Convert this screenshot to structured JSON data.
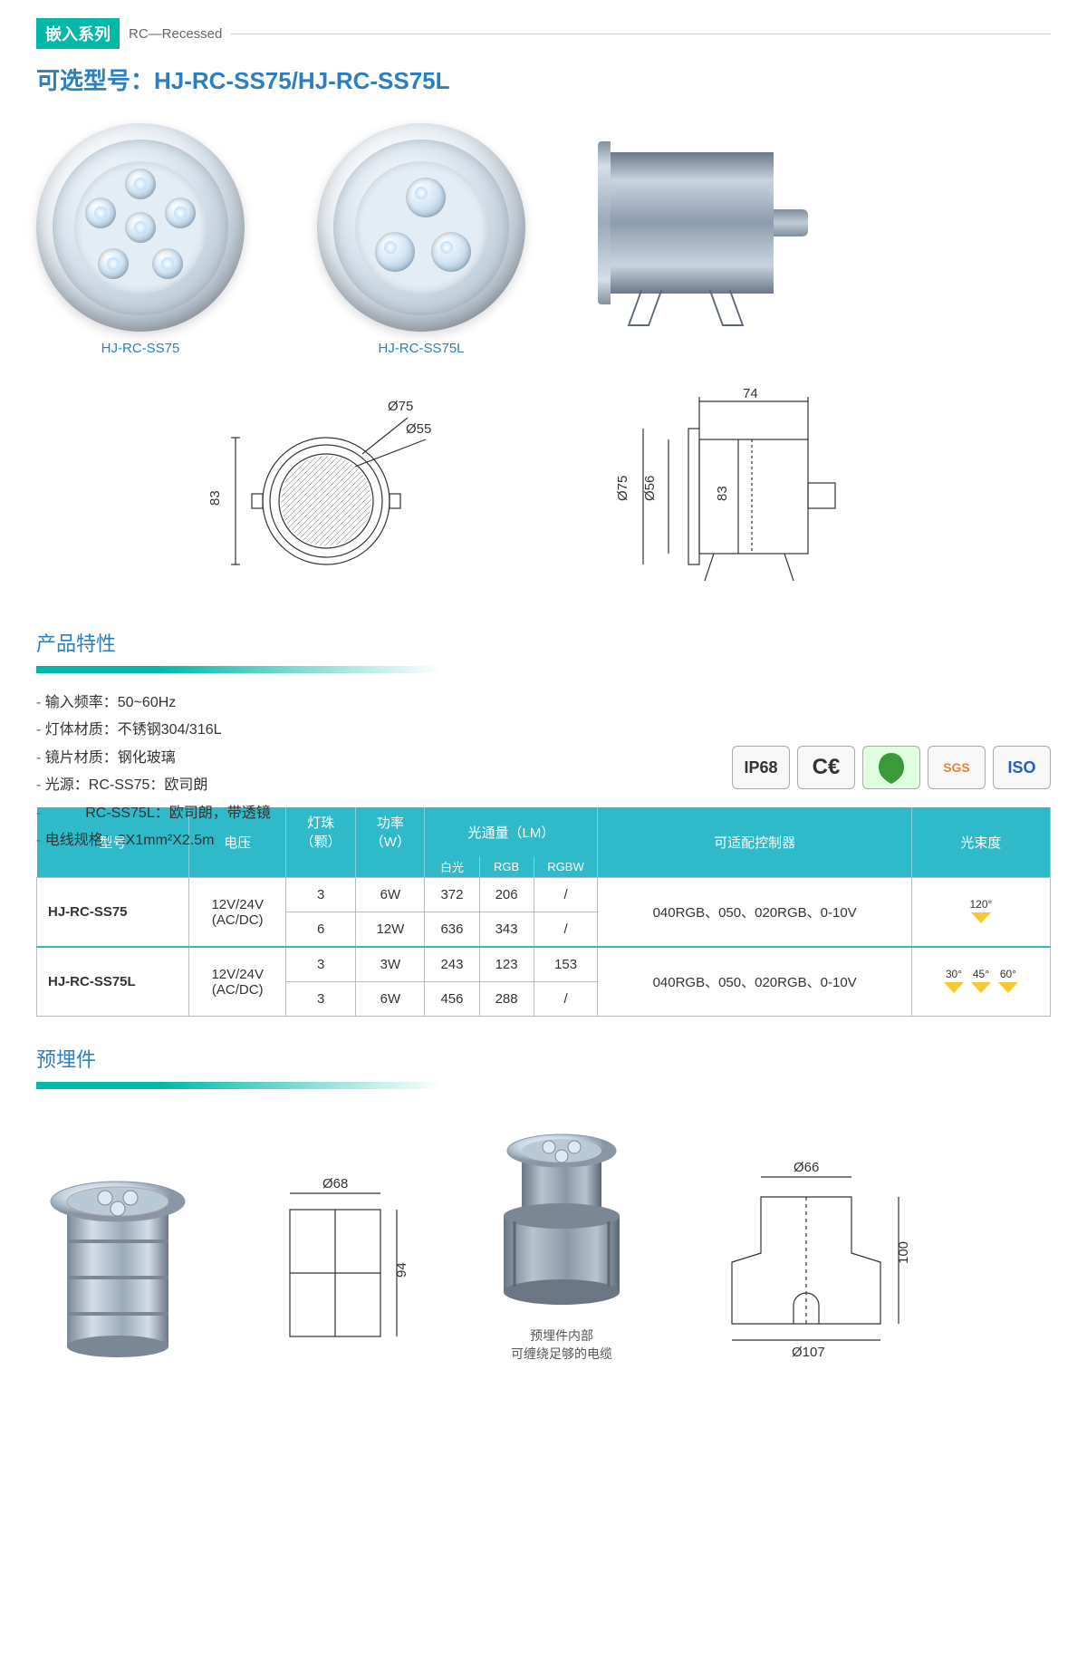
{
  "header": {
    "series_badge": "嵌入系列",
    "series_sub": "RC—Recessed"
  },
  "model_title": "可选型号：HJ-RC-SS75/HJ-RC-SS75L",
  "photos": {
    "label1": "HJ-RC-SS75",
    "label2": "HJ-RC-SS75L"
  },
  "tech_front": {
    "d_outer": "Ø75",
    "d_inner": "Ø55",
    "height": "83"
  },
  "tech_side": {
    "width": "74",
    "d_flange": "Ø75",
    "d_body": "Ø56",
    "depth": "83"
  },
  "features": {
    "title": "产品特性",
    "items": [
      "输入频率：50~60Hz",
      "灯体材质：不锈钢304/316L",
      "镜片材质：钢化玻璃",
      "光源：RC-SS75：欧司朗",
      "          RC-SS75L：欧司朗，带透镜",
      "电线规格：3X1mm²X2.5m"
    ]
  },
  "badges": {
    "ip68": "IP68",
    "ce": "C€",
    "rohs": "RoHS",
    "sgs": "SGS",
    "iso": "ISO"
  },
  "table": {
    "headers": {
      "model": "型号",
      "voltage": "电压",
      "leds": "灯珠",
      "leds_unit": "（颗）",
      "power": "功率",
      "power_unit": "（W）",
      "lumen": "光通量（LM）",
      "lumen_white": "白光",
      "lumen_rgb": "RGB",
      "lumen_rgbw": "RGBW",
      "controller": "可适配控制器",
      "beam": "光束度"
    },
    "header_color": "#2ebac8",
    "border_color": "#bbbbbb",
    "rows": [
      {
        "model": "HJ-RC-SS75",
        "voltage": "12V/24V\n(AC/DC)",
        "sub": [
          {
            "leds": "3",
            "power": "6W",
            "white": "372",
            "rgb": "206",
            "rgbw": "/"
          },
          {
            "leds": "6",
            "power": "12W",
            "white": "636",
            "rgb": "343",
            "rgbw": "/"
          }
        ],
        "controller": "040RGB、050、020RGB、0-10V",
        "beam": [
          "120°"
        ],
        "beam_color": "#f8c830"
      },
      {
        "model": "HJ-RC-SS75L",
        "voltage": "12V/24V\n(AC/DC)",
        "sub": [
          {
            "leds": "3",
            "power": "3W",
            "white": "243",
            "rgb": "123",
            "rgbw": "153"
          },
          {
            "leds": "3",
            "power": "6W",
            "white": "456",
            "rgb": "288",
            "rgbw": "/"
          }
        ],
        "controller": "040RGB、050、020RGB、0-10V",
        "beam": [
          "30°",
          "45°",
          "60°"
        ],
        "beam_color": "#f8c830"
      }
    ]
  },
  "embed": {
    "title": "预埋件",
    "dim1_d": "Ø68",
    "dim1_h": "94",
    "dim2_dtop": "Ø66",
    "dim2_h": "100",
    "dim2_dbot": "Ø107",
    "caption": "预埋件内部\n可缠绕足够的电缆"
  },
  "colors": {
    "teal": "#00b8a8",
    "blue": "#2b7fbf",
    "table_header": "#2ebac8",
    "beam": "#f8c830"
  }
}
